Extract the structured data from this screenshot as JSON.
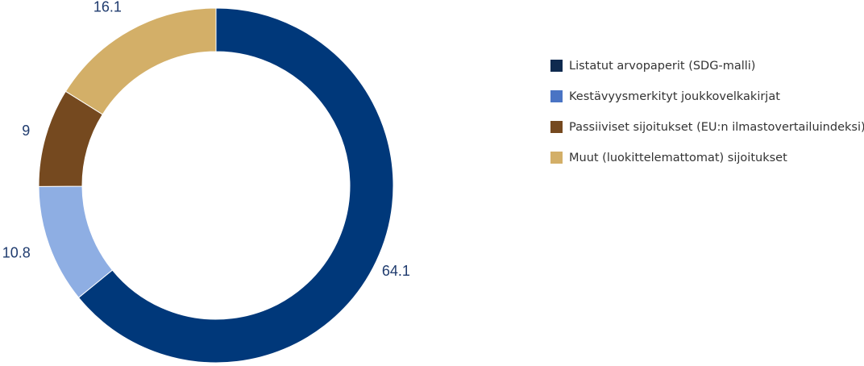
{
  "chart_data": {
    "type": "pie",
    "style": "donut",
    "categories": [
      "Listatut arvopaperit (SDG-malli)",
      "Kestävyysmerkityt joukkovelkakirjat",
      "Passiiviset sijoitukset (EU:n ilmastovertailuindeksi)",
      "Muut (luokittelemattomat) sijoitukset"
    ],
    "values": [
      64.1,
      10.8,
      9,
      16.1
    ],
    "value_labels": [
      "64.1",
      "10.8",
      "9",
      "16.1"
    ],
    "colors": [
      "#00387a",
      "#8eaee3",
      "#75491f",
      "#d3af68"
    ],
    "legend_colors": [
      "#0e2a4f",
      "#4a74c4",
      "#75491f",
      "#d3af68"
    ],
    "legend_position": "right",
    "title": ""
  }
}
